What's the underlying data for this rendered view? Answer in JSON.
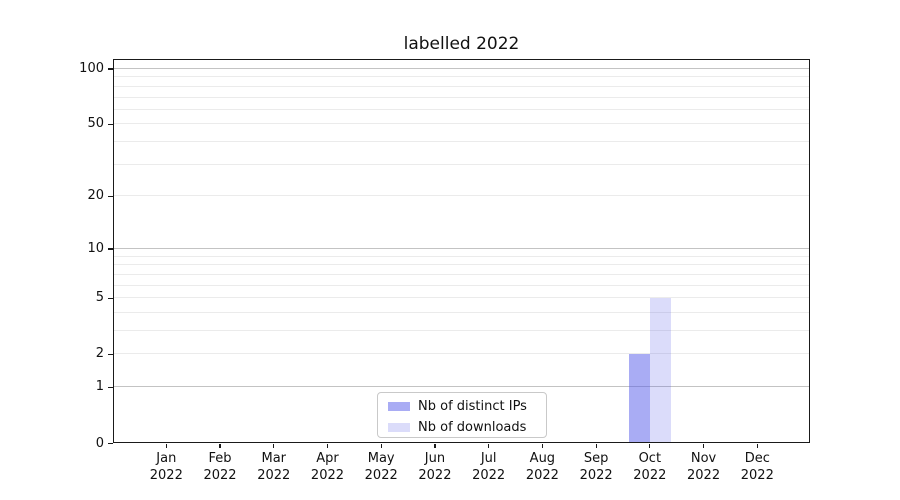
{
  "figure": {
    "background": "#ffffff"
  },
  "chart_data": {
    "type": "bar",
    "title": "labelled 2022",
    "categories": [
      "Jan 2022",
      "Feb 2022",
      "Mar 2022",
      "Apr 2022",
      "May 2022",
      "Jun 2022",
      "Jul 2022",
      "Aug 2022",
      "Sep 2022",
      "Oct 2022",
      "Nov 2022",
      "Dec 2022"
    ],
    "series": [
      {
        "name": "Nb of distinct IPs",
        "values": [
          0,
          0,
          0,
          0,
          0,
          0,
          0,
          0,
          0,
          2,
          0,
          0
        ],
        "base_color": "#5359e9",
        "alpha": 0.5
      },
      {
        "name": "Nb of downloads",
        "values": [
          0,
          0,
          0,
          0,
          0,
          0,
          0,
          0,
          0,
          5,
          0,
          0
        ],
        "base_color": "#5359e9",
        "alpha": 0.21
      }
    ],
    "xlabel": "",
    "ylabel": "",
    "yscale": "log1p",
    "ylim": [
      0,
      113
    ],
    "yticks": [
      0,
      1,
      2,
      5,
      10,
      20,
      50,
      100
    ],
    "grid": {
      "major_values": [
        1,
        10,
        100
      ],
      "minor_values": [
        2,
        3,
        4,
        5,
        6,
        7,
        8,
        9,
        20,
        30,
        40,
        50,
        60,
        70,
        80,
        90
      ],
      "major_color": "#c3c3c3",
      "minor_color": "#ebebeb"
    },
    "legend": {
      "position": "lower center",
      "entries": [
        "Nb of distinct IPs",
        "Nb of downloads"
      ]
    },
    "colors": {
      "spine": "#1a1a1a",
      "text": "#111111"
    }
  }
}
